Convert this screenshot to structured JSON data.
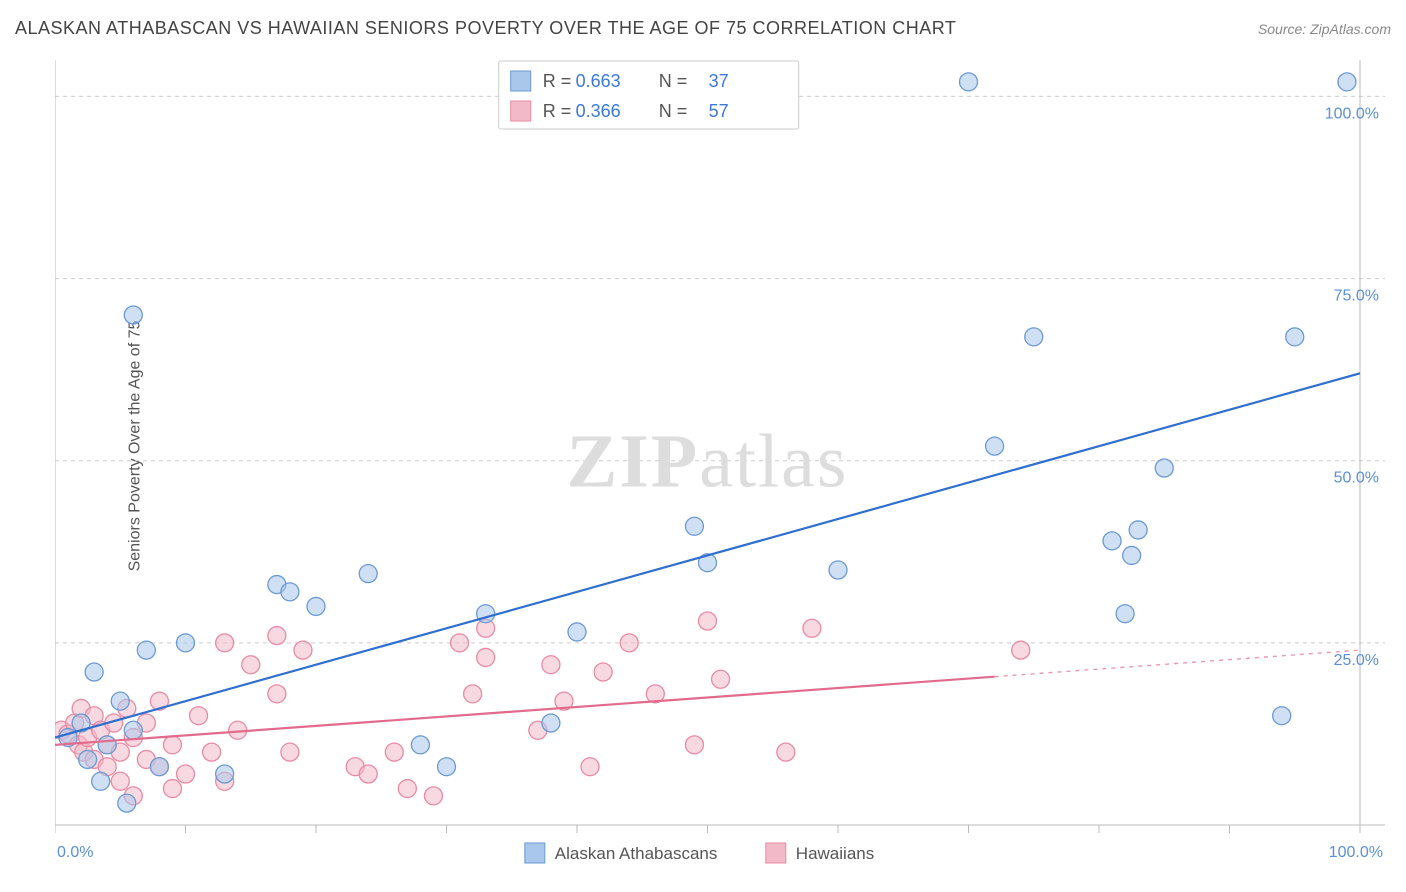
{
  "title": "ALASKAN ATHABASCAN VS HAWAIIAN SENIORS POVERTY OVER THE AGE OF 75 CORRELATION CHART",
  "source_label": "Source:",
  "source_name": "ZipAtlas.com",
  "y_axis_label": "Seniors Poverty Over the Age of 75",
  "watermark_a": "ZIP",
  "watermark_b": "atlas",
  "chart": {
    "type": "scatter",
    "xlim": [
      0,
      100
    ],
    "ylim": [
      0,
      105
    ],
    "x_ticks_major": [
      0,
      10,
      20,
      30,
      40,
      50,
      60,
      70,
      80,
      90,
      100
    ],
    "y_gridlines": [
      0,
      25,
      50,
      75,
      100
    ],
    "x_tick_labels": {
      "0": "0.0%",
      "100": "100.0%"
    },
    "y_tick_labels": {
      "25": "25.0%",
      "50": "50.0%",
      "75": "75.0%",
      "100": "100.0%"
    },
    "background_color": "#ffffff",
    "grid_color": "#cccccc",
    "axis_color": "#bbbbbb",
    "label_color": "#5b8fd6",
    "marker_radius": 9,
    "marker_opacity": 0.55,
    "line_width": 2.2,
    "series": [
      {
        "id": "athabascan",
        "label": "Alaskan Athabascans",
        "fill": "#a9c6eb",
        "stroke": "#6b9ad2",
        "line_color": "#2f6fd0",
        "R_label": "R =",
        "R": "0.663",
        "N_label": "N =",
        "N": "37",
        "trend": {
          "x1": 0,
          "y1": 12,
          "x2": 100,
          "y2": 62,
          "dash_from_x": 100
        },
        "points": [
          [
            1,
            12
          ],
          [
            2,
            14
          ],
          [
            2.5,
            9
          ],
          [
            3,
            21
          ],
          [
            3.5,
            6
          ],
          [
            4,
            11
          ],
          [
            5,
            17
          ],
          [
            5.5,
            3
          ],
          [
            6,
            13
          ],
          [
            6,
            70
          ],
          [
            7,
            24
          ],
          [
            8,
            8
          ],
          [
            10,
            25
          ],
          [
            13,
            7
          ],
          [
            17,
            33
          ],
          [
            18,
            32
          ],
          [
            20,
            30
          ],
          [
            24,
            34.5
          ],
          [
            28,
            11
          ],
          [
            30,
            8
          ],
          [
            33,
            29
          ],
          [
            38,
            14
          ],
          [
            40,
            26.5
          ],
          [
            49,
            41
          ],
          [
            50,
            36
          ],
          [
            60,
            35
          ],
          [
            70,
            102
          ],
          [
            72,
            52
          ],
          [
            75,
            67
          ],
          [
            81,
            39
          ],
          [
            82,
            29
          ],
          [
            82.5,
            37
          ],
          [
            83,
            40.5
          ],
          [
            85,
            49
          ],
          [
            94,
            15
          ],
          [
            95,
            67
          ],
          [
            99,
            102
          ]
        ]
      },
      {
        "id": "hawaiian",
        "label": "Hawaiians",
        "fill": "#f2b9c8",
        "stroke": "#e88aa3",
        "line_color": "#e26b8d",
        "R_label": "R =",
        "R": "0.366",
        "N_label": "N =",
        "N": "57",
        "trend": {
          "x1": 0,
          "y1": 11,
          "x2": 100,
          "y2": 24,
          "dash_from_x": 72
        },
        "points": [
          [
            0.5,
            13
          ],
          [
            1,
            12.5
          ],
          [
            1.5,
            14
          ],
          [
            1.8,
            11
          ],
          [
            2,
            16
          ],
          [
            2.2,
            10
          ],
          [
            2.5,
            12
          ],
          [
            3,
            15
          ],
          [
            3,
            9
          ],
          [
            3.5,
            13
          ],
          [
            4,
            11
          ],
          [
            4,
            8
          ],
          [
            4.5,
            14
          ],
          [
            5,
            10
          ],
          [
            5,
            6
          ],
          [
            5.5,
            16
          ],
          [
            6,
            12
          ],
          [
            6,
            4
          ],
          [
            7,
            14
          ],
          [
            7,
            9
          ],
          [
            8,
            8
          ],
          [
            8,
            17
          ],
          [
            9,
            11
          ],
          [
            9,
            5
          ],
          [
            10,
            7
          ],
          [
            11,
            15
          ],
          [
            12,
            10
          ],
          [
            13,
            25
          ],
          [
            13,
            6
          ],
          [
            14,
            13
          ],
          [
            15,
            22
          ],
          [
            17,
            18
          ],
          [
            17,
            26
          ],
          [
            18,
            10
          ],
          [
            19,
            24
          ],
          [
            23,
            8
          ],
          [
            24,
            7
          ],
          [
            26,
            10
          ],
          [
            27,
            5
          ],
          [
            29,
            4
          ],
          [
            31,
            25
          ],
          [
            32,
            18
          ],
          [
            33,
            23
          ],
          [
            33,
            27
          ],
          [
            37,
            13
          ],
          [
            38,
            22
          ],
          [
            39,
            17
          ],
          [
            41,
            8
          ],
          [
            42,
            21
          ],
          [
            44,
            25
          ],
          [
            46,
            18
          ],
          [
            49,
            11
          ],
          [
            50,
            28
          ],
          [
            51,
            20
          ],
          [
            56,
            10
          ],
          [
            58,
            27
          ],
          [
            74,
            24
          ]
        ]
      }
    ]
  },
  "legend_top": {
    "box_border": "#cccccc",
    "box_fill": "#ffffff"
  },
  "legend_bottom": {
    "items": [
      {
        "label": "Alaskan Athabascans",
        "fill": "#a9c6eb",
        "stroke": "#6b9ad2"
      },
      {
        "label": "Hawaiians",
        "fill": "#f2b9c8",
        "stroke": "#e88aa3"
      }
    ]
  }
}
